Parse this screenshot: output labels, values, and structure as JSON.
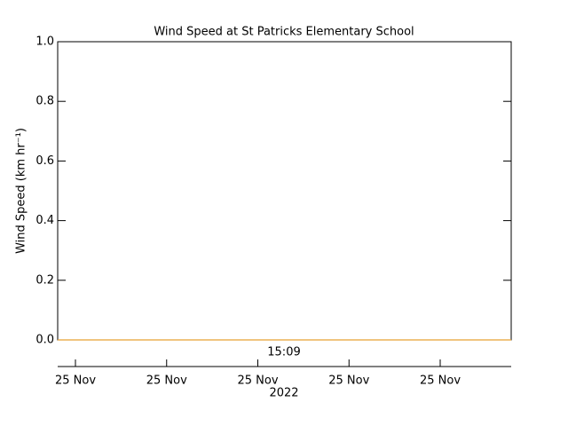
{
  "chart_data": {
    "type": "line",
    "title": "Wind Speed at St Patricks Elementary School",
    "y_label": "Wind Speed (km hr⁻¹)",
    "x_time_label": "15:09",
    "x_date_ticks": [
      "25 Nov",
      "25 Nov",
      "25 Nov",
      "25 Nov",
      "25 Nov"
    ],
    "x_year": "2022",
    "categories": [
      null,
      null
    ],
    "values": [
      0,
      0
    ],
    "color": "#e8a030",
    "ylim": [
      0,
      1
    ],
    "yticks": [
      {
        "value": 0,
        "label": "0.0"
      },
      0.2,
      0.4,
      0.6,
      0.8,
      {
        "value": 1,
        "label": "1.0"
      }
    ]
  }
}
